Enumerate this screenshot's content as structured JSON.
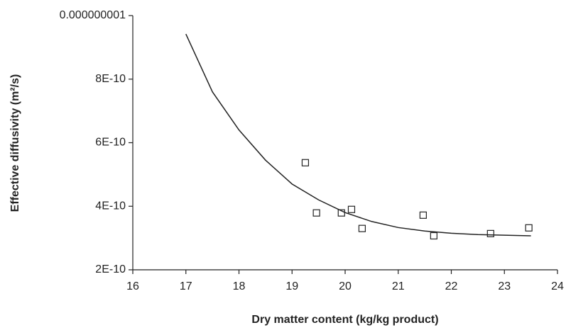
{
  "chart_data": {
    "type": "scatter",
    "xlabel": "Dry matter content (kg/kg product)",
    "ylabel": "Effective diffusivity (m²/s)",
    "xlim": [
      16,
      24
    ],
    "xticks": [
      16,
      17,
      18,
      19,
      20,
      21,
      22,
      23,
      24
    ],
    "ylim": [
      2e-10,
      1e-09
    ],
    "yticks": [
      {
        "value": 2e-10,
        "label": "2E-10"
      },
      {
        "value": 4e-10,
        "label": "4E-10"
      },
      {
        "value": 6e-10,
        "label": "6E-10"
      },
      {
        "value": 8e-10,
        "label": "8E-10"
      },
      {
        "value": 1e-09,
        "label": "0.000000001"
      }
    ],
    "series": [
      {
        "mode": "markers",
        "color": "#222222",
        "x": [
          19.25,
          19.46,
          19.93,
          20.12,
          20.32,
          21.47,
          21.67,
          22.74,
          23.46
        ],
        "values": [
          5.37e-10,
          3.79e-10,
          3.79e-10,
          3.9e-10,
          3.3e-10,
          3.72e-10,
          3.07e-10,
          3.14e-10,
          3.32e-10
        ]
      },
      {
        "mode": "line",
        "color": "#222222",
        "x": [
          17.0,
          17.5,
          18.0,
          18.5,
          19.0,
          19.5,
          20.0,
          20.5,
          21.0,
          21.5,
          22.0,
          22.5,
          23.0,
          23.5
        ],
        "values": [
          9.42e-10,
          7.6e-10,
          6.4e-10,
          5.45e-10,
          4.7e-10,
          4.2e-10,
          3.8e-10,
          3.52e-10,
          3.33e-10,
          3.22e-10,
          3.15e-10,
          3.11e-10,
          3.09e-10,
          3.07e-10
        ]
      }
    ]
  }
}
